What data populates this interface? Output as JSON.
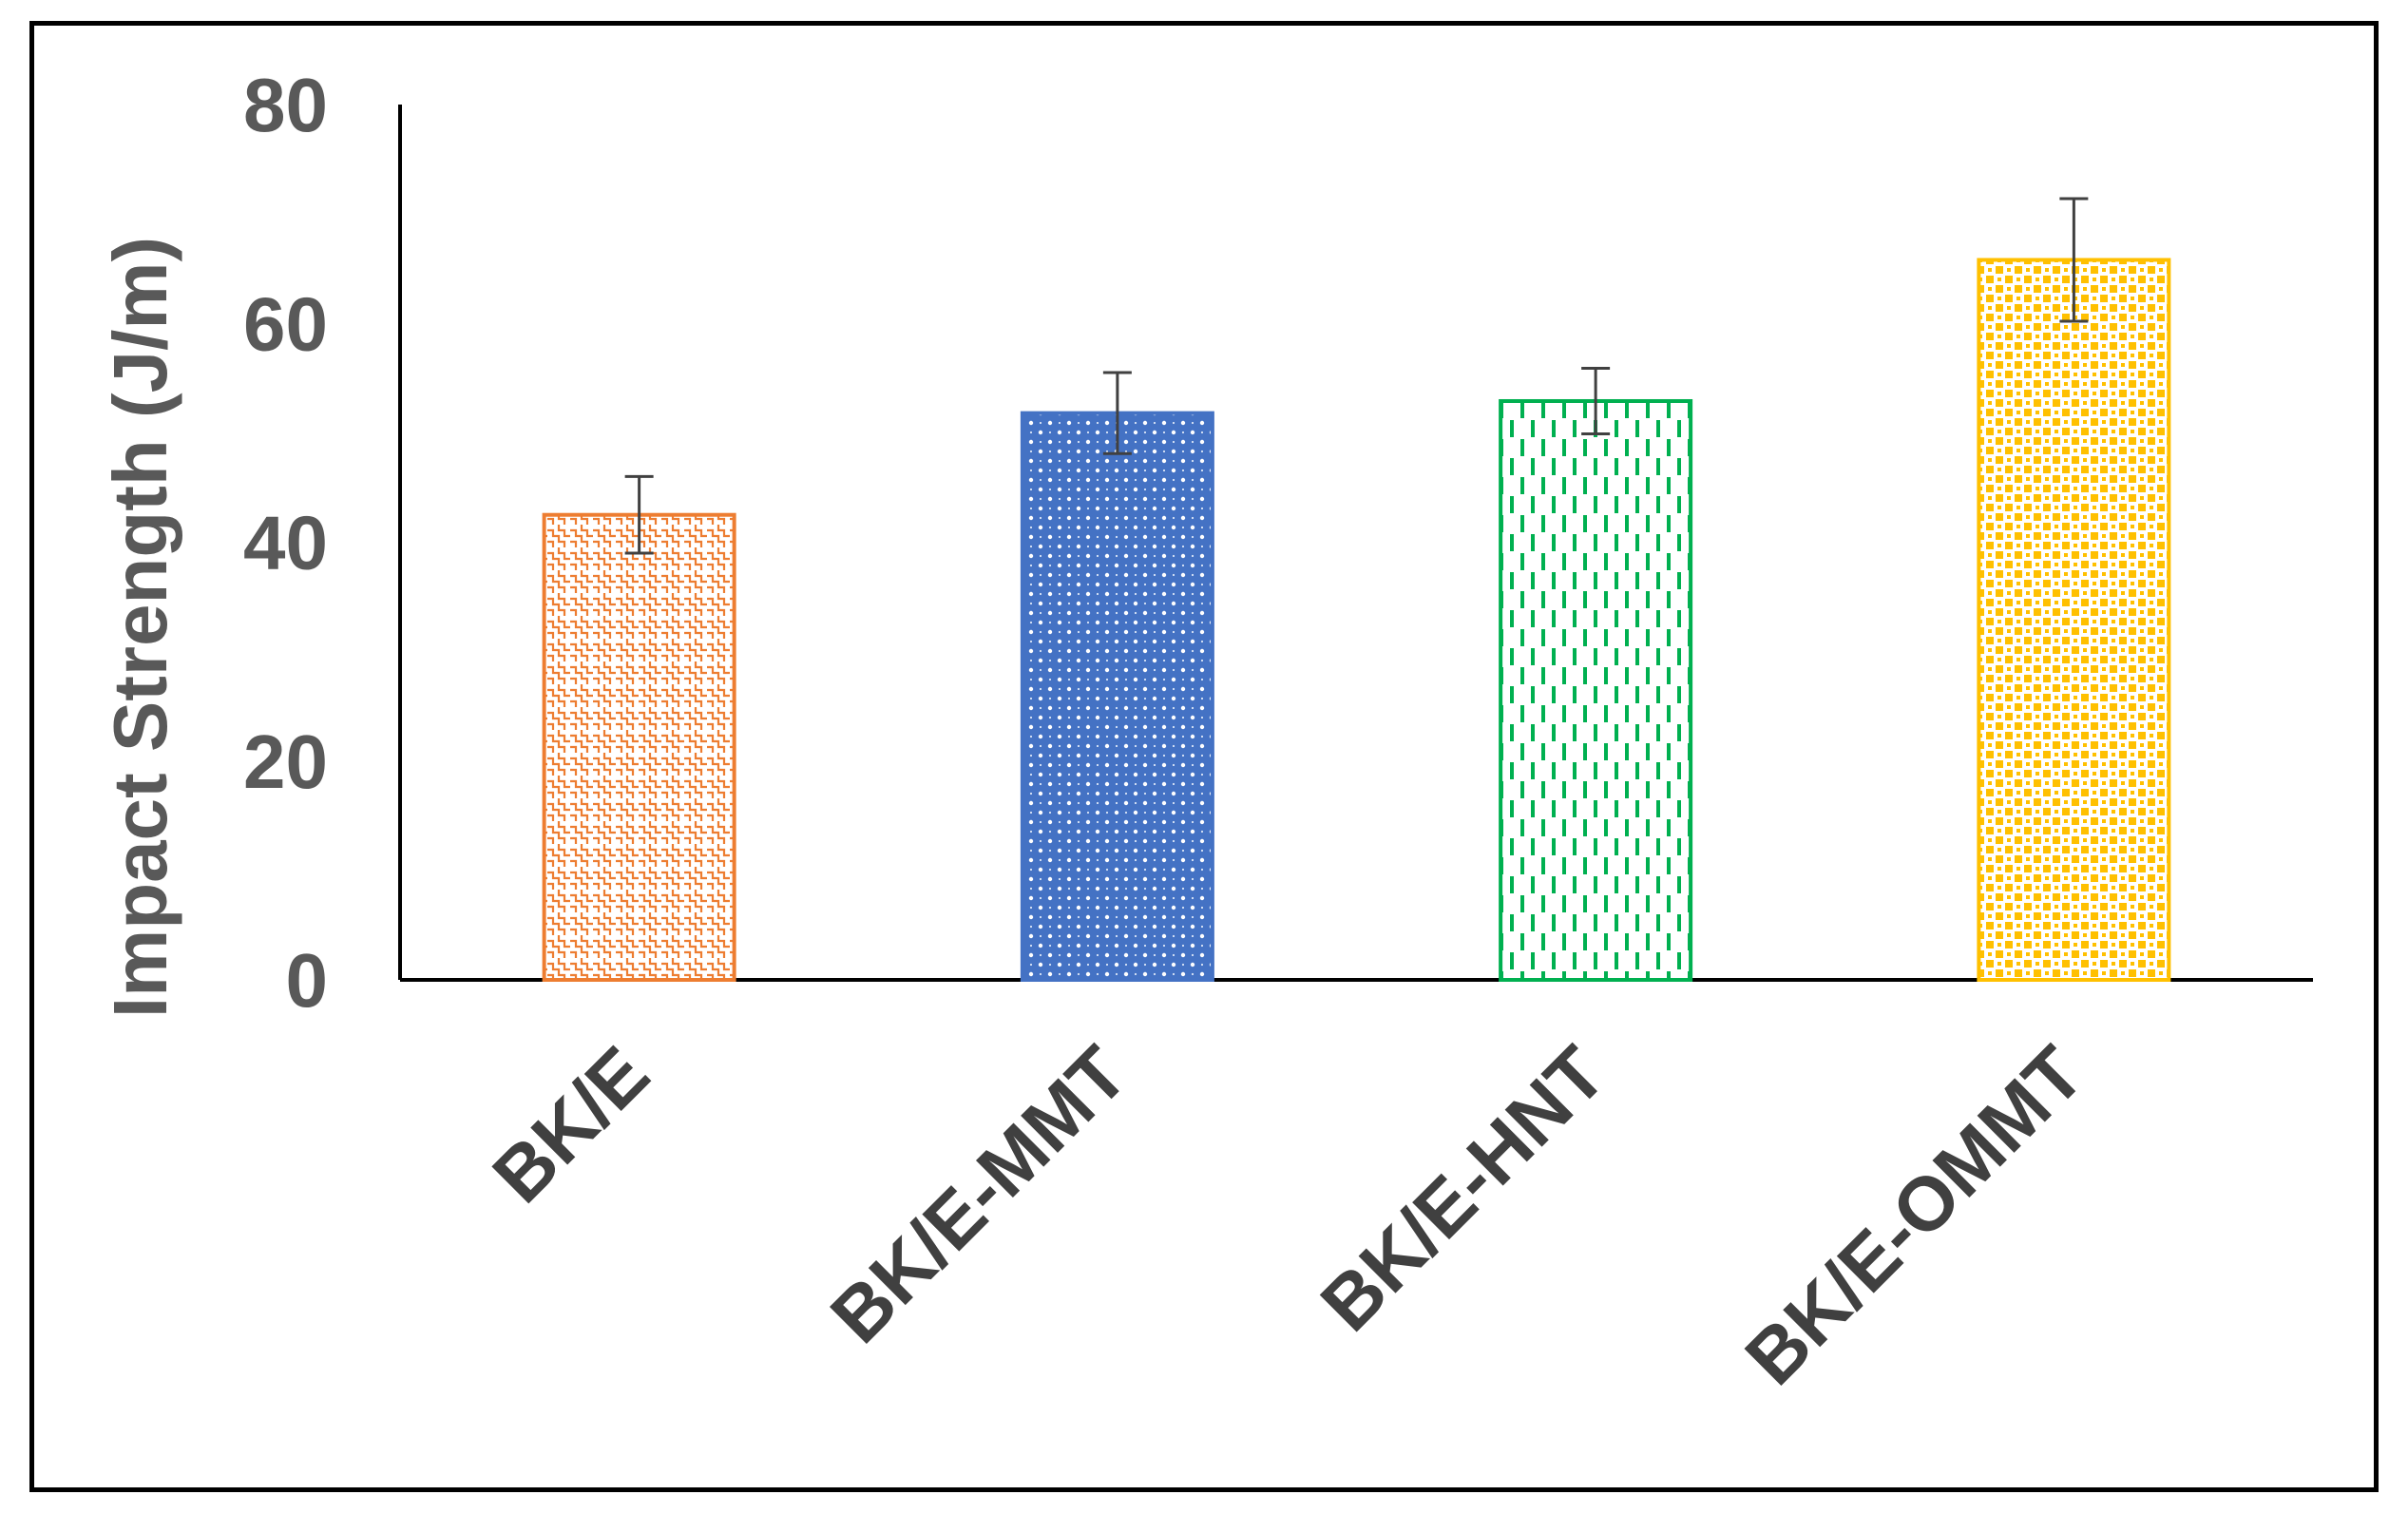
{
  "chart_data": {
    "type": "bar",
    "title": "",
    "xlabel": "",
    "ylabel": "Impact Strength (J/m)",
    "ylim": [
      0,
      80
    ],
    "yticks": [
      0,
      20,
      40,
      60,
      80
    ],
    "grid": false,
    "legend": "none",
    "categories": [
      "BK/E",
      "BK/E-MMT",
      "BK/E-HNT",
      "BK/E-OMMT"
    ],
    "values": [
      42.5,
      51.8,
      52.9,
      65.8
    ],
    "error": [
      3.5,
      3.7,
      3.0,
      5.6
    ],
    "colors": [
      "#ED7D31",
      "#4472C4",
      "#00B050",
      "#FFC000"
    ],
    "patterns": [
      "weave",
      "dotted-grid",
      "dashed-vertical",
      "checker-small"
    ]
  }
}
